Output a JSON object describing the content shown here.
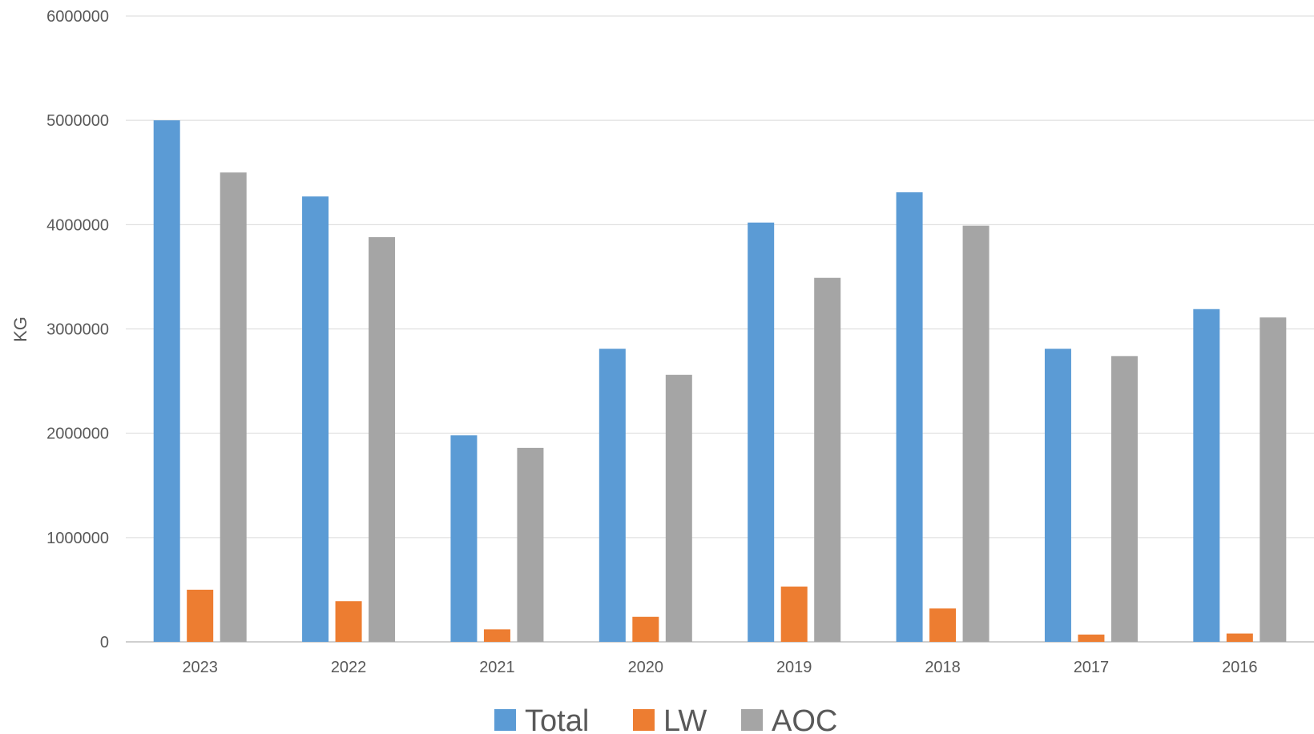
{
  "chart_data": {
    "type": "bar",
    "categories": [
      "2023",
      "2022",
      "2021",
      "2020",
      "2019",
      "2018",
      "2017",
      "2016"
    ],
    "series": [
      {
        "name": "Total",
        "color": "#5B9BD5",
        "values": [
          5000000,
          4270000,
          1980000,
          2810000,
          4020000,
          4310000,
          2810000,
          3190000
        ]
      },
      {
        "name": "LW",
        "color": "#ED7D31",
        "values": [
          500000,
          390000,
          120000,
          240000,
          530000,
          320000,
          70000,
          80000
        ]
      },
      {
        "name": "AOC",
        "color": "#A5A5A5",
        "values": [
          4500000,
          3880000,
          1860000,
          2560000,
          3490000,
          3990000,
          2740000,
          3110000
        ]
      }
    ],
    "title": "",
    "xlabel": "",
    "ylabel": "KG",
    "ylim": [
      0,
      6000000
    ],
    "yticks": [
      "0",
      "1000000",
      "2000000",
      "3000000",
      "4000000",
      "5000000",
      "6000000"
    ],
    "grid": true,
    "legend_position": "bottom"
  }
}
